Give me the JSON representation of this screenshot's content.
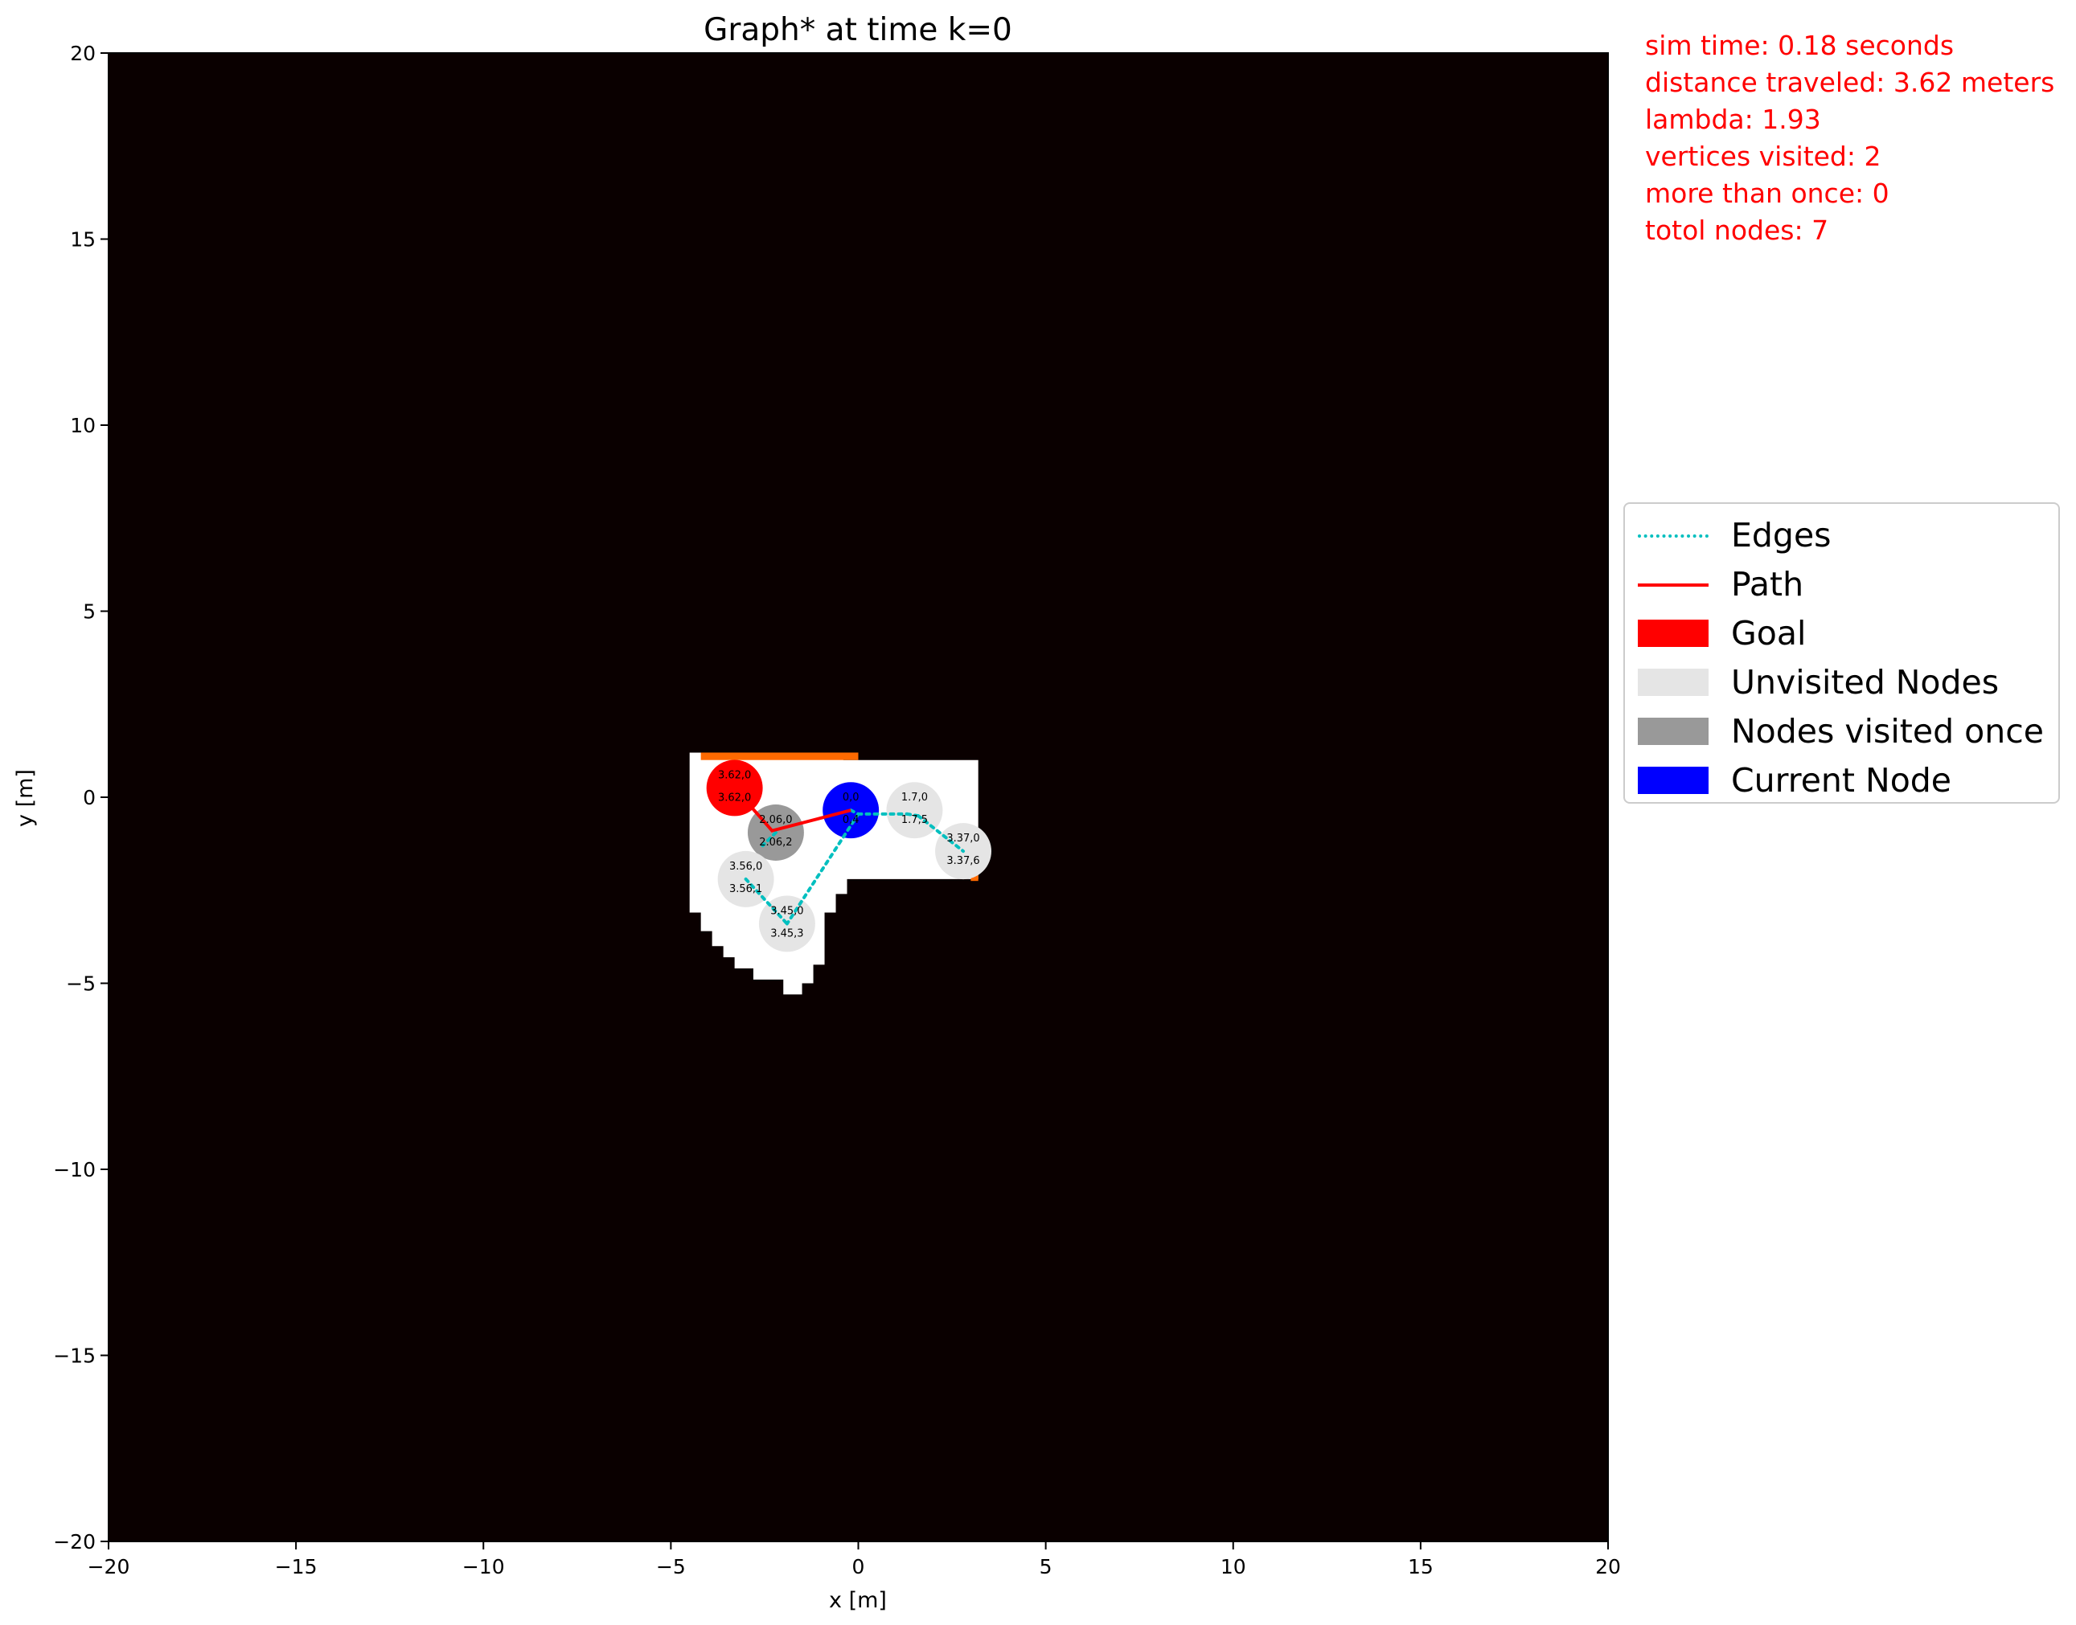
{
  "chart_data": {
    "type": "scatter",
    "title": "Graph* at time k=0",
    "xlabel": "x [m]",
    "ylabel": "y [m]",
    "xlim": [
      -20,
      20
    ],
    "ylim": [
      -20,
      20
    ],
    "xticks": [
      -20,
      -15,
      -10,
      -5,
      0,
      5,
      10,
      15,
      20
    ],
    "yticks": [
      -20,
      -15,
      -10,
      -5,
      0,
      5,
      10,
      15,
      20
    ],
    "xtick_labels": [
      "−20",
      "−15",
      "−10",
      "−5",
      "0",
      "5",
      "10",
      "15",
      "20"
    ],
    "ytick_labels": [
      "−20",
      "−15",
      "−10",
      "−5",
      "0",
      "5",
      "10",
      "15",
      "20"
    ],
    "background_color": "#0a0000",
    "grid": false,
    "legend_position": "center-right outside",
    "free_space": [
      [
        -4.5,
        1.2
      ],
      [
        -0.4,
        1.2
      ],
      [
        -0.4,
        1.0
      ],
      [
        3.2,
        1.0
      ],
      [
        3.2,
        -2.2
      ],
      [
        -0.3,
        -2.2
      ],
      [
        -0.3,
        -2.6
      ],
      [
        -0.6,
        -2.6
      ],
      [
        -0.6,
        -3.1
      ],
      [
        -0.9,
        -3.1
      ],
      [
        -0.9,
        -4.5
      ],
      [
        -1.2,
        -4.5
      ],
      [
        -1.2,
        -5.0
      ],
      [
        -1.5,
        -5.0
      ],
      [
        -1.5,
        -5.3
      ],
      [
        -2.0,
        -5.3
      ],
      [
        -2.0,
        -4.9
      ],
      [
        -2.8,
        -4.9
      ],
      [
        -2.8,
        -4.6
      ],
      [
        -3.3,
        -4.6
      ],
      [
        -3.3,
        -4.3
      ],
      [
        -3.6,
        -4.3
      ],
      [
        -3.6,
        -4.0
      ],
      [
        -3.9,
        -4.0
      ],
      [
        -3.9,
        -3.6
      ],
      [
        -4.2,
        -3.6
      ],
      [
        -4.2,
        -3.1
      ],
      [
        -4.5,
        -3.1
      ]
    ],
    "walls": [
      {
        "x0": -4.2,
        "x1": 0.0,
        "y0": 1.0,
        "y1": 1.2
      },
      {
        "x0": 3.0,
        "x1": 3.2,
        "y0": -2.25,
        "y1": -2.05
      }
    ],
    "nodes": [
      {
        "id": "goal",
        "x": -3.3,
        "y": 0.25,
        "r": 0.75,
        "status": "goal",
        "label_top": "3.62,0",
        "label_bottom": "3.62,0"
      },
      {
        "id": "n1",
        "x": -2.2,
        "y": -0.95,
        "r": 0.75,
        "status": "visited_once",
        "label_top": "2.06,0",
        "label_bottom": "2.06,2"
      },
      {
        "id": "current",
        "x": -0.2,
        "y": -0.35,
        "r": 0.75,
        "status": "current",
        "label_top": "0,0",
        "label_bottom": "0,4"
      },
      {
        "id": "n3",
        "x": 1.5,
        "y": -0.35,
        "r": 0.75,
        "status": "unvisited",
        "label_top": "1.7,0",
        "label_bottom": "1.7,5"
      },
      {
        "id": "n4",
        "x": 2.8,
        "y": -1.45,
        "r": 0.75,
        "status": "unvisited",
        "label_top": "3.37,0",
        "label_bottom": "3.37,6"
      },
      {
        "id": "n5",
        "x": -3.0,
        "y": -2.2,
        "r": 0.75,
        "status": "unvisited",
        "label_top": "3.56,0",
        "label_bottom": "3.56,1"
      },
      {
        "id": "n6",
        "x": -1.9,
        "y": -3.4,
        "r": 0.75,
        "status": "unvisited",
        "label_top": "3.45,0",
        "label_bottom": "3.45,3"
      }
    ],
    "edges": [
      [
        [
          -2.2,
          -0.95
        ],
        [
          -2.55,
          -1.3
        ]
      ],
      [
        [
          -0.2,
          -0.35
        ],
        [
          0.0,
          -0.45
        ]
      ],
      [
        [
          0.0,
          -0.45
        ],
        [
          1.3,
          -0.45
        ]
      ],
      [
        [
          1.3,
          -0.45
        ],
        [
          1.6,
          -0.5
        ]
      ],
      [
        [
          1.6,
          -0.5
        ],
        [
          2.8,
          -1.45
        ]
      ],
      [
        [
          0.0,
          -0.45
        ],
        [
          -1.9,
          -3.4
        ]
      ],
      [
        [
          -3.0,
          -2.2
        ],
        [
          -1.9,
          -3.4
        ]
      ]
    ],
    "path": [
      [
        -3.3,
        0.25
      ],
      [
        -2.3,
        -0.9
      ],
      [
        -0.2,
        -0.35
      ]
    ],
    "colors": {
      "goal": "#ff0000",
      "visited_once": "#999999",
      "unvisited": "#e5e5e5",
      "current": "#0000ff",
      "edges": "#00bfbf",
      "path": "#ff0000",
      "walls": "#ff6a00",
      "free": "#ffffff",
      "node_text": "#000000"
    },
    "legend": [
      {
        "label": "Edges",
        "kind": "dotted-line",
        "color": "#00bfbf"
      },
      {
        "label": "Path",
        "kind": "line",
        "color": "#ff0000"
      },
      {
        "label": "Goal",
        "kind": "patch",
        "color": "#ff0000"
      },
      {
        "label": "Unvisited Nodes",
        "kind": "patch",
        "color": "#e5e5e5"
      },
      {
        "label": "Nodes visited once",
        "kind": "patch",
        "color": "#999999"
      },
      {
        "label": "Current Node",
        "kind": "patch",
        "color": "#0000ff"
      }
    ]
  },
  "stats": {
    "sim_time": "sim time: 0.18 seconds",
    "distance": "distance traveled: 3.62 meters",
    "lambda": "lambda: 1.93",
    "vertices_visited": "vertices visited: 2",
    "more_than_once": "more than once: 0",
    "total_nodes": "totol nodes: 7"
  }
}
